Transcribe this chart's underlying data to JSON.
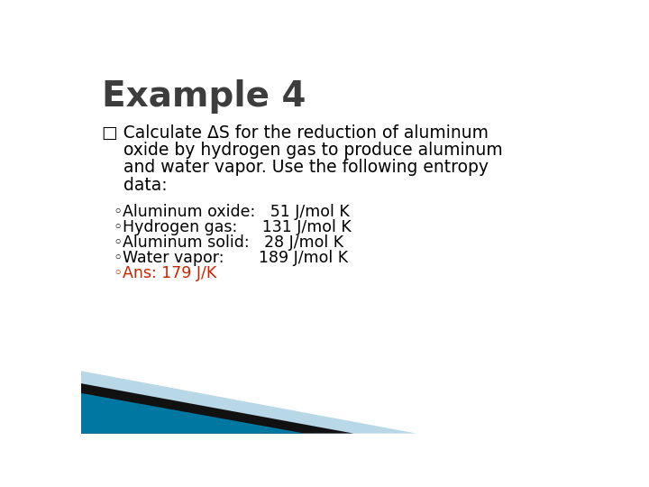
{
  "title": "Example 4",
  "title_fontsize": 28,
  "title_color": "#3d3d3d",
  "bg_color": "#ffffff",
  "main_lines": [
    "□ Calculate ΔS for the reduction of aluminum",
    "    oxide by hydrogen gas to produce aluminum",
    "    and water vapor. Use the following entropy",
    "    data:"
  ],
  "main_fontsize": 13.5,
  "main_color": "#000000",
  "sub_bullets": [
    "Aluminum oxide:   51 J/mol K",
    "Hydrogen gas:     131 J/mol K",
    "Aluminum solid:   28 J/mol K",
    "Water vapor:       189 J/mol K",
    "Ans: 179 J/K"
  ],
  "sub_bullet_colors": [
    "#000000",
    "#000000",
    "#000000",
    "#000000",
    "#cc2200"
  ],
  "sub_fontsize": 12.5,
  "teal_color": "#0077a0",
  "black_color": "#111111",
  "light_blue_color": "#b8d8e8"
}
